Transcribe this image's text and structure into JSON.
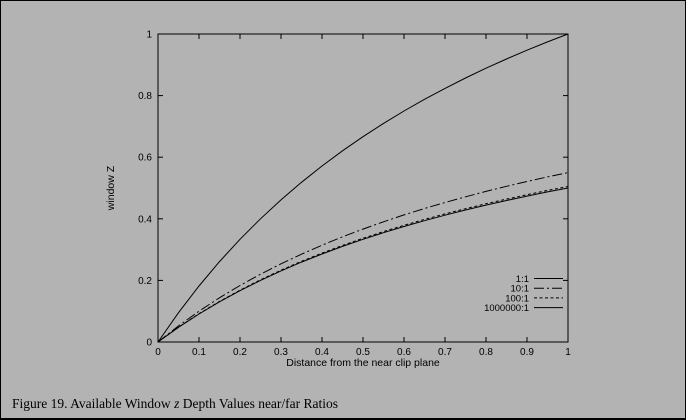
{
  "figure": {
    "background_color": "#b3b3b3",
    "frame_color": "#000000"
  },
  "caption": {
    "prefix": "Figure 19.  Available Window ",
    "italic": "z",
    "suffix": " Depth Values near/far Ratios"
  },
  "chart_data": {
    "type": "line",
    "title": "",
    "xlabel": "Distance from the near clip plane",
    "ylabel": "window Z",
    "xlim": [
      0,
      1
    ],
    "ylim": [
      0,
      1
    ],
    "grid": false,
    "legend_position": "inside-bottom-right",
    "line_color": "#000000",
    "x_ticks": [
      "0",
      "0.1",
      "0.2",
      "0.3",
      "0.4",
      "0.5",
      "0.6",
      "0.7",
      "0.8",
      "0.9",
      "1"
    ],
    "y_ticks": [
      "0",
      "0.2",
      "0.4",
      "0.6",
      "0.8",
      "1"
    ],
    "x": [
      0,
      0.05,
      0.1,
      0.15,
      0.2,
      0.25,
      0.3,
      0.35,
      0.4,
      0.45,
      0.5,
      0.55,
      0.6,
      0.65,
      0.7,
      0.75,
      0.8,
      0.85,
      0.9,
      0.95,
      1
    ],
    "series": [
      {
        "name": "1:1",
        "style": "solid",
        "dash": "",
        "values": [
          0,
          0.0952,
          0.1818,
          0.2609,
          0.3333,
          0.4,
          0.4615,
          0.5185,
          0.5714,
          0.6207,
          0.6667,
          0.7097,
          0.75,
          0.7879,
          0.8235,
          0.8571,
          0.8889,
          0.9189,
          0.9474,
          0.9744,
          1
        ]
      },
      {
        "name": "10:1",
        "style": "dash-dot",
        "dash": "10 3 2 3",
        "values": [
          0,
          0.0524,
          0.1,
          0.1435,
          0.1833,
          0.22,
          0.2538,
          0.2852,
          0.3143,
          0.3414,
          0.3667,
          0.3903,
          0.4125,
          0.4333,
          0.4529,
          0.4714,
          0.4889,
          0.5054,
          0.5211,
          0.5359,
          0.55
        ]
      },
      {
        "name": "100:1",
        "style": "short-dash",
        "dash": "3 2.5",
        "values": [
          0,
          0.0481,
          0.0918,
          0.1317,
          0.1683,
          0.202,
          0.2331,
          0.2619,
          0.2886,
          0.3135,
          0.3367,
          0.3584,
          0.3788,
          0.3979,
          0.4159,
          0.4329,
          0.4489,
          0.4641,
          0.4784,
          0.4921,
          0.505
        ]
      },
      {
        "name": "1000000:1",
        "style": "solid",
        "dash": "",
        "values": [
          0,
          0.0476,
          0.0909,
          0.1304,
          0.1667,
          0.2,
          0.2308,
          0.2593,
          0.2857,
          0.3103,
          0.3333,
          0.3548,
          0.375,
          0.3939,
          0.4118,
          0.4286,
          0.4444,
          0.4595,
          0.4737,
          0.4872,
          0.5
        ]
      }
    ]
  }
}
